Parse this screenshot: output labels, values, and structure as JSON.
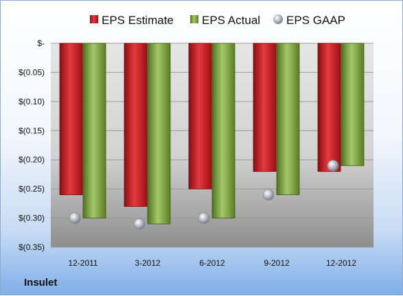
{
  "company": "Insulet",
  "colors": {
    "estimate": "#c0161c",
    "actual": "#7aa23a",
    "gaap": "#aeb4bd"
  },
  "chart_data": {
    "type": "bar",
    "title": "",
    "xlabel": "",
    "ylabel": "",
    "categories": [
      "12-2011",
      "3-2012",
      "6-2012",
      "9-2012",
      "12-2012"
    ],
    "series": [
      {
        "name": "EPS Estimate",
        "kind": "bar",
        "values": [
          -0.26,
          -0.28,
          -0.25,
          -0.22,
          -0.22
        ]
      },
      {
        "name": "EPS Actual",
        "kind": "bar",
        "values": [
          -0.3,
          -0.31,
          -0.3,
          -0.26,
          -0.21
        ]
      },
      {
        "name": "EPS GAAP",
        "kind": "marker",
        "values": [
          -0.3,
          -0.31,
          -0.3,
          -0.26,
          -0.21
        ]
      }
    ],
    "ylim": [
      -0.35,
      0
    ],
    "y_ticks": [
      0,
      -0.05,
      -0.1,
      -0.15,
      -0.2,
      -0.25,
      -0.3,
      -0.35
    ],
    "y_tick_labels": [
      "$-",
      "$(0.05)",
      "$(0.10)",
      "$(0.15)",
      "$(0.20)",
      "$(0.25)",
      "$(0.30)",
      "$(0.35)"
    ],
    "grid": true,
    "legend": "top"
  }
}
